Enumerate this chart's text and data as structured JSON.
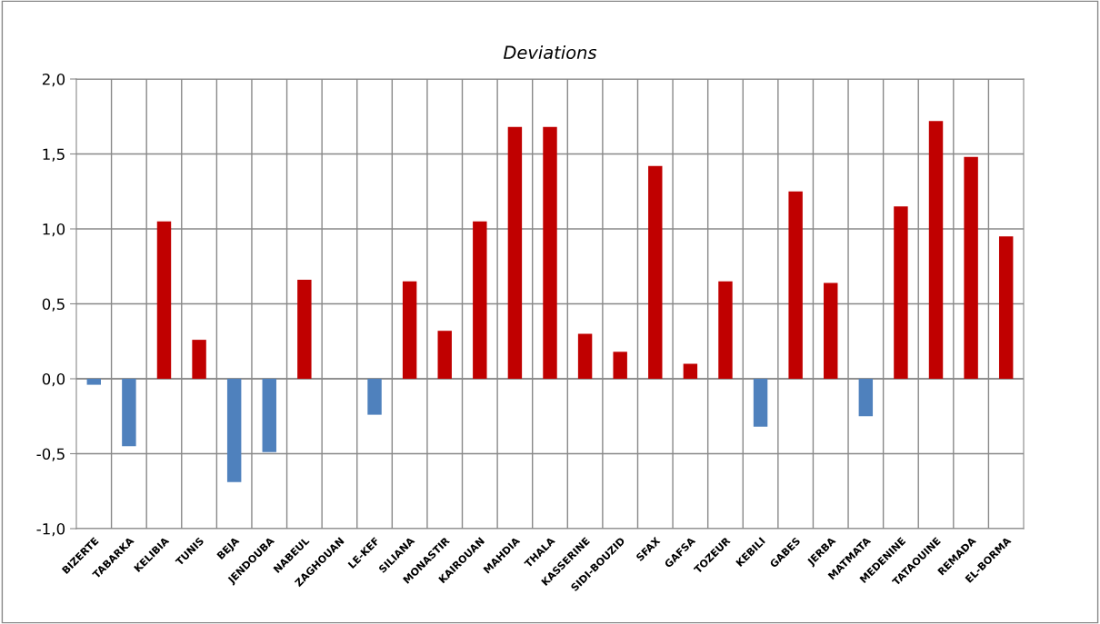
{
  "chart_data": {
    "type": "bar",
    "title": "Deviations",
    "categories": [
      "BIZERTE",
      "TABARKA",
      "KELIBIA",
      "TUNIS",
      "BEJA",
      "JENDOUBA",
      "NABEUL",
      "ZAGHOUAN",
      "LE-KEF",
      "SILIANA",
      "MONASTIR",
      "KAIROUAN",
      "MAHDIA",
      "THALA",
      "KASSERINE",
      "SIDI-BOUZID",
      "SFAX",
      "GAFSA",
      "TOZEUR",
      "KEBILI",
      "GABES",
      "JERBA",
      "MATMATA",
      "MEDENINE",
      "TATAOUINE",
      "REMADA",
      "EL-BORMA"
    ],
    "values": [
      -0.04,
      -0.45,
      1.05,
      0.26,
      -0.69,
      -0.49,
      0.66,
      0.0,
      -0.24,
      0.65,
      0.32,
      1.05,
      1.68,
      1.68,
      0.3,
      0.18,
      1.42,
      0.1,
      0.65,
      -0.32,
      1.25,
      0.64,
      -0.25,
      1.15,
      1.72,
      1.48,
      0.95
    ],
    "colors": [
      "#4f81bd",
      "#4f81bd",
      "#c00000",
      "#c00000",
      "#4f81bd",
      "#4f81bd",
      "#c00000",
      "#c00000",
      "#4f81bd",
      "#c00000",
      "#c00000",
      "#c00000",
      "#c00000",
      "#c00000",
      "#c00000",
      "#c00000",
      "#c00000",
      "#c00000",
      "#c00000",
      "#4f81bd",
      "#c00000",
      "#c00000",
      "#4f81bd",
      "#c00000",
      "#c00000",
      "#c00000",
      "#c00000"
    ],
    "ylim": [
      -1.0,
      2.0
    ],
    "yticks": [
      {
        "value": -1.0,
        "label": "-1,0"
      },
      {
        "value": -0.5,
        "label": "-0,5"
      },
      {
        "value": 0.0,
        "label": "0,0"
      },
      {
        "value": 0.5,
        "label": "0,5"
      },
      {
        "value": 1.0,
        "label": "1,0"
      },
      {
        "value": 1.5,
        "label": "1,5"
      },
      {
        "value": 2.0,
        "label": "2,0"
      }
    ],
    "grid": true
  }
}
